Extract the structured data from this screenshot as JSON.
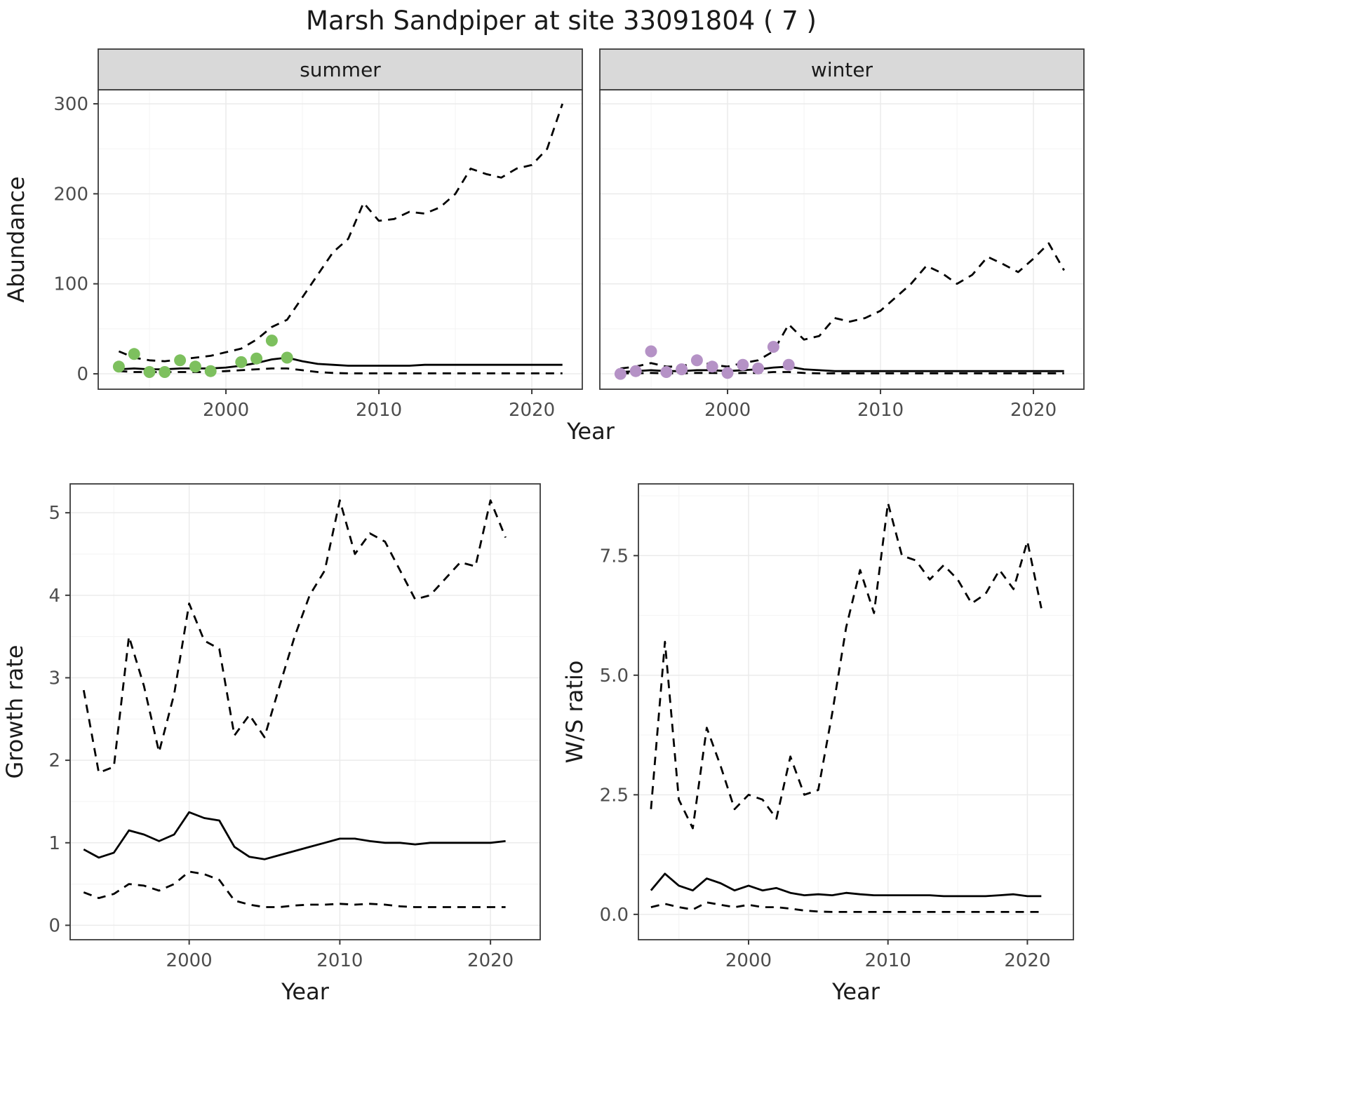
{
  "title": "Marsh Sandpiper at site 33091804 ( 7 )",
  "colors": {
    "summer_points": "#7dc05e",
    "winter_points": "#b592c6",
    "line": "#000000",
    "strip_fill": "#d9d9d9",
    "panel_border": "#3a3a3a",
    "grid_major": "#ebebeb",
    "grid_minor": "#f5f5f5",
    "tick_text": "#4d4d4d",
    "title_text": "#1a1a1a"
  },
  "chart_data": [
    {
      "id": "abundance",
      "type": "line",
      "xlabel": "Year",
      "ylabel": "Abundance",
      "years": [
        1993,
        1994,
        1995,
        1996,
        1997,
        1998,
        1999,
        2000,
        2001,
        2002,
        2003,
        2004,
        2005,
        2006,
        2007,
        2008,
        2009,
        2010,
        2011,
        2012,
        2013,
        2014,
        2015,
        2016,
        2017,
        2018,
        2019,
        2020,
        2021,
        2022
      ],
      "xlim": [
        1991.65,
        2023.3
      ],
      "ylim": [
        -17.1,
        315.6
      ],
      "xticks": [
        2000,
        2010,
        2020
      ],
      "yticks": [
        0,
        100,
        200,
        300
      ],
      "xminor": [
        1995,
        2005,
        2015
      ],
      "yminor": [
        50,
        150,
        250
      ],
      "facets": [
        {
          "label": "summer",
          "observed_points": {
            "color_key": "summer_points",
            "x": [
              1993,
              1994,
              1995,
              1996,
              1997,
              1998,
              1999,
              2001,
              2002,
              2003,
              2004
            ],
            "y": [
              8,
              22,
              2,
              2,
              15,
              8,
              3,
              13,
              17,
              37,
              18
            ]
          },
          "series": [
            {
              "name": "median",
              "style": "solid",
              "y": [
                5,
                6,
                5,
                5,
                6,
                6,
                6,
                7,
                9,
                12,
                16,
                18,
                14,
                11,
                10,
                9,
                9,
                9,
                9,
                9,
                10,
                10,
                10,
                10,
                10,
                10,
                10,
                10,
                10,
                10
              ]
            },
            {
              "name": "upper-ci",
              "style": "dashed",
              "y": [
                25,
                18,
                15,
                14,
                16,
                18,
                20,
                24,
                28,
                38,
                52,
                60,
                85,
                110,
                135,
                150,
                190,
                170,
                172,
                180,
                178,
                185,
                200,
                228,
                222,
                218,
                228,
                232,
                250,
                300
              ]
            },
            {
              "name": "lower-ci",
              "style": "dashed",
              "y": [
                3,
                2,
                2,
                2,
                2,
                2,
                2,
                3,
                4,
                5,
                6,
                6,
                4,
                2,
                1,
                0.5,
                0.5,
                0.5,
                0.5,
                0.5,
                0.5,
                0.5,
                0.5,
                0.5,
                0.5,
                0.5,
                0.5,
                0.5,
                0.5,
                0.5
              ]
            }
          ]
        },
        {
          "label": "winter",
          "observed_points": {
            "color_key": "winter_points",
            "x": [
              1993,
              1994,
              1995,
              1996,
              1997,
              1998,
              1999,
              2000,
              2001,
              2002,
              2003,
              2004
            ],
            "y": [
              0,
              3,
              25,
              2,
              5,
              15,
              8,
              1,
              10,
              6,
              30,
              10
            ]
          },
          "series": [
            {
              "name": "median",
              "style": "solid",
              "y": [
                2,
                3,
                4,
                3,
                3,
                4,
                4,
                3,
                4,
                5,
                7,
                8,
                5,
                4,
                3,
                3,
                3,
                3,
                3,
                3,
                3,
                3,
                3,
                3,
                3,
                3,
                3,
                3,
                3,
                3
              ]
            },
            {
              "name": "upper-ci",
              "style": "dashed",
              "y": [
                6,
                8,
                12,
                8,
                8,
                14,
                10,
                8,
                12,
                15,
                25,
                55,
                38,
                42,
                62,
                58,
                62,
                70,
                85,
                100,
                120,
                112,
                100,
                110,
                130,
                122,
                113,
                128,
                145,
                115
              ]
            },
            {
              "name": "lower-ci",
              "style": "dashed",
              "y": [
                0.5,
                0.5,
                1,
                0.5,
                0.5,
                1,
                1,
                0.5,
                1,
                1,
                2,
                2,
                1,
                0.5,
                0.5,
                0.5,
                0.5,
                0.5,
                0.5,
                0.5,
                0.5,
                0.5,
                0.5,
                0.5,
                0.5,
                0.5,
                0.5,
                0.5,
                0.5,
                0.5
              ]
            }
          ]
        }
      ]
    },
    {
      "id": "growth_rate",
      "type": "line",
      "xlabel": "Year",
      "ylabel": "Growth rate",
      "years": [
        1993,
        1994,
        1995,
        1996,
        1997,
        1998,
        1999,
        2000,
        2001,
        2002,
        2003,
        2004,
        2005,
        2006,
        2007,
        2008,
        2009,
        2010,
        2011,
        2012,
        2013,
        2014,
        2015,
        2016,
        2017,
        2018,
        2019,
        2020,
        2021
      ],
      "xlim": [
        1992.1,
        2023.3
      ],
      "ylim": [
        -0.175,
        5.35
      ],
      "xticks": [
        2000,
        2010,
        2020
      ],
      "yticks": [
        0,
        1,
        2,
        3,
        4,
        5
      ],
      "xminor": [
        1995,
        2005,
        2015
      ],
      "yminor": [
        0.5,
        1.5,
        2.5,
        3.5,
        4.5
      ],
      "series": [
        {
          "name": "median",
          "style": "solid",
          "y": [
            0.92,
            0.82,
            0.88,
            1.15,
            1.1,
            1.02,
            1.1,
            1.37,
            1.3,
            1.27,
            0.95,
            0.83,
            0.8,
            0.85,
            0.9,
            0.95,
            1.0,
            1.05,
            1.05,
            1.02,
            1.0,
            1.0,
            0.98,
            1.0,
            1.0,
            1.0,
            1.0,
            1.0,
            1.02
          ]
        },
        {
          "name": "upper-ci",
          "style": "dashed",
          "y": [
            2.85,
            1.85,
            1.92,
            3.5,
            2.9,
            2.1,
            2.8,
            3.9,
            3.45,
            3.35,
            2.3,
            2.55,
            2.28,
            2.9,
            3.5,
            4.0,
            4.3,
            5.15,
            4.5,
            4.75,
            4.65,
            4.3,
            3.95,
            4.0,
            4.2,
            4.4,
            4.35,
            5.15,
            4.7
          ]
        },
        {
          "name": "lower-ci",
          "style": "dashed",
          "y": [
            0.4,
            0.33,
            0.38,
            0.5,
            0.48,
            0.42,
            0.5,
            0.65,
            0.62,
            0.55,
            0.3,
            0.25,
            0.22,
            0.22,
            0.24,
            0.25,
            0.25,
            0.26,
            0.25,
            0.26,
            0.25,
            0.23,
            0.22,
            0.22,
            0.22,
            0.22,
            0.22,
            0.22,
            0.22
          ]
        }
      ]
    },
    {
      "id": "ws_ratio",
      "type": "line",
      "xlabel": "Year",
      "ylabel": "W/S ratio",
      "years": [
        1993,
        1994,
        1995,
        1996,
        1997,
        1998,
        1999,
        2000,
        2001,
        2002,
        2003,
        2004,
        2005,
        2006,
        2007,
        2008,
        2009,
        2010,
        2011,
        2012,
        2013,
        2014,
        2015,
        2016,
        2017,
        2018,
        2019,
        2020,
        2021
      ],
      "xlim": [
        1992.1,
        2023.3
      ],
      "ylim": [
        -0.53,
        9.0
      ],
      "xticks": [
        2000,
        2010,
        2020
      ],
      "yticks": [
        0,
        2.5,
        5,
        7.5
      ],
      "ytick_labels": [
        "0.0",
        "2.5",
        "5.0",
        "7.5"
      ],
      "xminor": [
        1995,
        2005,
        2015
      ],
      "yminor": [
        1.25,
        3.75,
        6.25,
        8.75
      ],
      "series": [
        {
          "name": "median",
          "style": "solid",
          "y": [
            0.5,
            0.85,
            0.6,
            0.5,
            0.75,
            0.65,
            0.5,
            0.6,
            0.5,
            0.55,
            0.45,
            0.4,
            0.42,
            0.4,
            0.45,
            0.42,
            0.4,
            0.4,
            0.4,
            0.4,
            0.4,
            0.38,
            0.38,
            0.38,
            0.38,
            0.4,
            0.42,
            0.38,
            0.38
          ]
        },
        {
          "name": "upper-ci",
          "style": "dashed",
          "y": [
            2.2,
            5.7,
            2.4,
            1.8,
            3.9,
            3.1,
            2.2,
            2.5,
            2.4,
            2.0,
            3.3,
            2.5,
            2.6,
            4.2,
            6.0,
            7.2,
            6.3,
            8.6,
            7.5,
            7.4,
            7.0,
            7.3,
            7.0,
            6.5,
            6.7,
            7.2,
            6.8,
            7.8,
            6.4
          ]
        },
        {
          "name": "lower-ci",
          "style": "dashed",
          "y": [
            0.15,
            0.22,
            0.15,
            0.1,
            0.25,
            0.2,
            0.15,
            0.2,
            0.15,
            0.15,
            0.12,
            0.08,
            0.06,
            0.05,
            0.05,
            0.05,
            0.05,
            0.05,
            0.05,
            0.05,
            0.05,
            0.05,
            0.05,
            0.05,
            0.05,
            0.05,
            0.05,
            0.05,
            0.05
          ]
        }
      ]
    }
  ]
}
